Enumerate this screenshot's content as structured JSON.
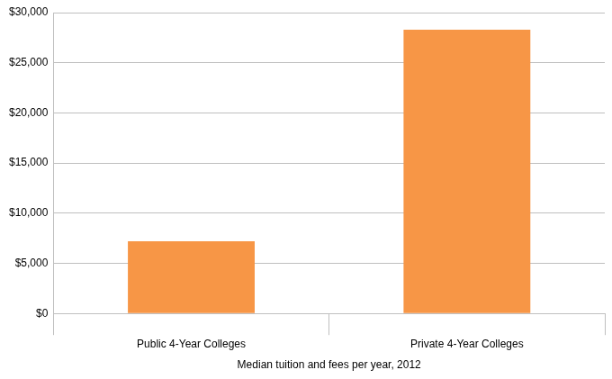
{
  "chart_data": {
    "type": "bar",
    "xlabel": "Median tuition and fees per year, 2012",
    "categories": [
      "Public 4-Year Colleges",
      "Private 4-Year Colleges"
    ],
    "values": [
      7200,
      28300
    ],
    "color": "#f79646",
    "ylim": [
      0,
      30000
    ],
    "yticks": [
      {
        "value": 0,
        "label": "$0"
      },
      {
        "value": 5000,
        "label": "$5,000"
      },
      {
        "value": 10000,
        "label": "$10,000"
      },
      {
        "value": 15000,
        "label": "$15,000"
      },
      {
        "value": 20000,
        "label": "$20,000"
      },
      {
        "value": 25000,
        "label": "$25,000"
      },
      {
        "value": 30000,
        "label": "$30,000"
      }
    ],
    "grid": true
  }
}
